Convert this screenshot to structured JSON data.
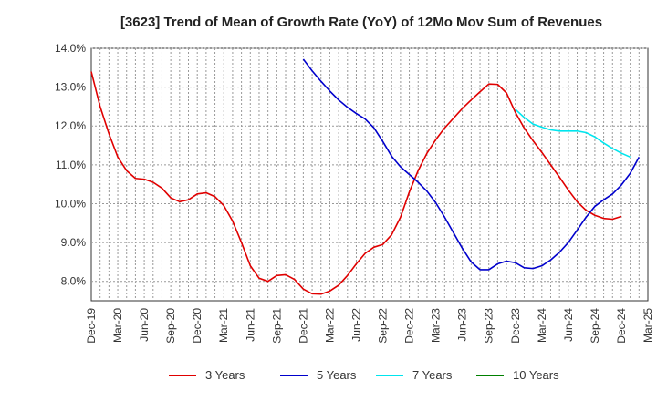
{
  "chart_data": {
    "type": "line",
    "title": "[3623]  Trend of Mean of Growth Rate (YoY) of 12Mo Mov Sum of Revenues",
    "xlabel": "",
    "ylabel": "",
    "ylim": [
      7.5,
      14.0
    ],
    "yticks": [
      8.0,
      9.0,
      10.0,
      11.0,
      12.0,
      13.0,
      14.0
    ],
    "ytick_labels": [
      "8.0%",
      "9.0%",
      "10.0%",
      "11.0%",
      "12.0%",
      "13.0%",
      "14.0%"
    ],
    "x_start": "Dec-19",
    "x_range_months": [
      0,
      63
    ],
    "xticks": [
      0,
      3,
      6,
      9,
      12,
      15,
      18,
      21,
      24,
      27,
      30,
      33,
      36,
      39,
      42,
      45,
      48,
      51,
      54,
      57,
      60,
      63
    ],
    "xtick_labels": [
      "Dec-19",
      "Mar-20",
      "Jun-20",
      "Sep-20",
      "Dec-20",
      "Mar-21",
      "Jun-21",
      "Sep-21",
      "Dec-21",
      "Mar-22",
      "Jun-22",
      "Sep-22",
      "Dec-22",
      "Mar-23",
      "Jun-23",
      "Sep-23",
      "Dec-23",
      "Mar-24",
      "Jun-24",
      "Sep-24",
      "Dec-24",
      "Mar-25"
    ],
    "grid": true,
    "legend_position": "bottom",
    "series": [
      {
        "name": "3 Years",
        "color": "#e00000",
        "start_month": 0,
        "values": [
          13.4,
          12.5,
          11.8,
          11.2,
          10.85,
          10.65,
          10.63,
          10.55,
          10.4,
          10.15,
          10.05,
          10.1,
          10.25,
          10.28,
          10.18,
          9.95,
          9.55,
          9.0,
          8.4,
          8.08,
          8.0,
          8.15,
          8.17,
          8.05,
          7.8,
          7.68,
          7.67,
          7.75,
          7.9,
          8.15,
          8.45,
          8.72,
          8.88,
          8.95,
          9.2,
          9.65,
          10.3,
          10.85,
          11.3,
          11.65,
          11.95,
          12.2,
          12.45,
          12.67,
          12.88,
          13.08,
          13.07,
          12.85,
          12.35,
          11.95,
          11.62,
          11.32,
          11.0,
          10.68,
          10.35,
          10.05,
          9.83,
          9.7,
          9.62,
          9.6,
          9.67
        ]
      },
      {
        "name": "5 Years",
        "color": "#0000cc",
        "start_month": 24,
        "values": [
          13.72,
          13.42,
          13.15,
          12.9,
          12.67,
          12.48,
          12.32,
          12.18,
          11.95,
          11.6,
          11.22,
          10.95,
          10.75,
          10.55,
          10.32,
          10.02,
          9.65,
          9.25,
          8.85,
          8.5,
          8.3,
          8.3,
          8.45,
          8.52,
          8.48,
          8.35,
          8.33,
          8.4,
          8.55,
          8.75,
          9.0,
          9.32,
          9.65,
          9.93,
          10.1,
          10.25,
          10.48,
          10.78,
          11.2
        ]
      },
      {
        "name": "7 Years",
        "color": "#00e5ee",
        "start_month": 48,
        "values": [
          12.43,
          12.22,
          12.05,
          11.97,
          11.9,
          11.87,
          11.87,
          11.87,
          11.83,
          11.72,
          11.56,
          11.42,
          11.3,
          11.2
        ]
      },
      {
        "name": "10 Years",
        "color": "#008000",
        "start_month": 0,
        "values": []
      }
    ]
  }
}
